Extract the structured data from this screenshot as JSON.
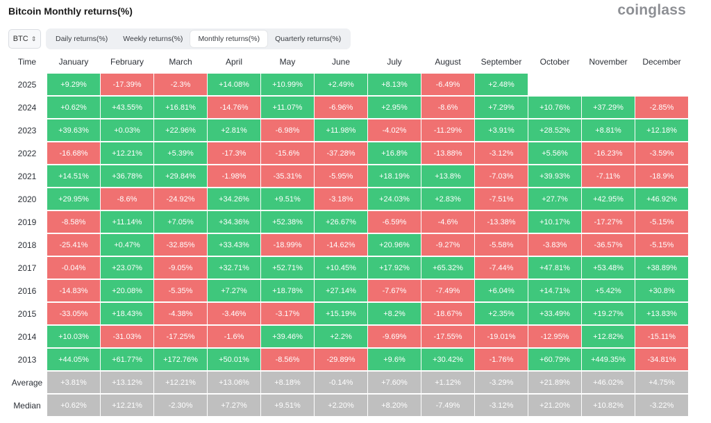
{
  "header": {
    "title": "Bitcoin Monthly returns(%)",
    "logo": "coinglass"
  },
  "controls": {
    "asset": "BTC",
    "tabs": [
      "Daily returns(%)",
      "Weekly returns(%)",
      "Monthly returns(%)",
      "Quarterly returns(%)"
    ],
    "active_tab": "Monthly returns(%)"
  },
  "table": {
    "columns": [
      "Time",
      "January",
      "February",
      "March",
      "April",
      "May",
      "June",
      "July",
      "August",
      "September",
      "October",
      "November",
      "December"
    ],
    "rows": [
      {
        "label": "2025",
        "values": [
          "+9.29%",
          "-17.39%",
          "-2.3%",
          "+14.08%",
          "+10.99%",
          "+2.49%",
          "+8.13%",
          "-6.49%",
          "+2.48%",
          "",
          "",
          ""
        ]
      },
      {
        "label": "2024",
        "values": [
          "+0.62%",
          "+43.55%",
          "+16.81%",
          "-14.76%",
          "+11.07%",
          "-6.96%",
          "+2.95%",
          "-8.6%",
          "+7.29%",
          "+10.76%",
          "+37.29%",
          "-2.85%"
        ]
      },
      {
        "label": "2023",
        "values": [
          "+39.63%",
          "+0.03%",
          "+22.96%",
          "+2.81%",
          "-6.98%",
          "+11.98%",
          "-4.02%",
          "-11.29%",
          "+3.91%",
          "+28.52%",
          "+8.81%",
          "+12.18%"
        ]
      },
      {
        "label": "2022",
        "values": [
          "-16.68%",
          "+12.21%",
          "+5.39%",
          "-17.3%",
          "-15.6%",
          "-37.28%",
          "+16.8%",
          "-13.88%",
          "-3.12%",
          "+5.56%",
          "-16.23%",
          "-3.59%"
        ]
      },
      {
        "label": "2021",
        "values": [
          "+14.51%",
          "+36.78%",
          "+29.84%",
          "-1.98%",
          "-35.31%",
          "-5.95%",
          "+18.19%",
          "+13.8%",
          "-7.03%",
          "+39.93%",
          "-7.11%",
          "-18.9%"
        ]
      },
      {
        "label": "2020",
        "values": [
          "+29.95%",
          "-8.6%",
          "-24.92%",
          "+34.26%",
          "+9.51%",
          "-3.18%",
          "+24.03%",
          "+2.83%",
          "-7.51%",
          "+27.7%",
          "+42.95%",
          "+46.92%"
        ]
      },
      {
        "label": "2019",
        "values": [
          "-8.58%",
          "+11.14%",
          "+7.05%",
          "+34.36%",
          "+52.38%",
          "+26.67%",
          "-6.59%",
          "-4.6%",
          "-13.38%",
          "+10.17%",
          "-17.27%",
          "-5.15%"
        ]
      },
      {
        "label": "2018",
        "values": [
          "-25.41%",
          "+0.47%",
          "-32.85%",
          "+33.43%",
          "-18.99%",
          "-14.62%",
          "+20.96%",
          "-9.27%",
          "-5.58%",
          "-3.83%",
          "-36.57%",
          "-5.15%"
        ]
      },
      {
        "label": "2017",
        "values": [
          "-0.04%",
          "+23.07%",
          "-9.05%",
          "+32.71%",
          "+52.71%",
          "+10.45%",
          "+17.92%",
          "+65.32%",
          "-7.44%",
          "+47.81%",
          "+53.48%",
          "+38.89%"
        ]
      },
      {
        "label": "2016",
        "values": [
          "-14.83%",
          "+20.08%",
          "-5.35%",
          "+7.27%",
          "+18.78%",
          "+27.14%",
          "-7.67%",
          "-7.49%",
          "+6.04%",
          "+14.71%",
          "+5.42%",
          "+30.8%"
        ]
      },
      {
        "label": "2015",
        "values": [
          "-33.05%",
          "+18.43%",
          "-4.38%",
          "-3.46%",
          "-3.17%",
          "+15.19%",
          "+8.2%",
          "-18.67%",
          "+2.35%",
          "+33.49%",
          "+19.27%",
          "+13.83%"
        ]
      },
      {
        "label": "2014",
        "values": [
          "+10.03%",
          "-31.03%",
          "-17.25%",
          "-1.6%",
          "+39.46%",
          "+2.2%",
          "-9.69%",
          "-17.55%",
          "-19.01%",
          "-12.95%",
          "+12.82%",
          "-15.11%"
        ]
      },
      {
        "label": "2013",
        "values": [
          "+44.05%",
          "+61.77%",
          "+172.76%",
          "+50.01%",
          "-8.56%",
          "-29.89%",
          "+9.6%",
          "+30.42%",
          "-1.76%",
          "+60.79%",
          "+449.35%",
          "-34.81%"
        ]
      }
    ],
    "summary": [
      {
        "label": "Average",
        "values": [
          "+3.81%",
          "+13.12%",
          "+12.21%",
          "+13.06%",
          "+8.18%",
          "-0.14%",
          "+7.60%",
          "+1.12%",
          "-3.29%",
          "+21.89%",
          "+46.02%",
          "+4.75%"
        ]
      },
      {
        "label": "Median",
        "values": [
          "+0.62%",
          "+12.21%",
          "-2.30%",
          "+7.27%",
          "+9.51%",
          "+2.20%",
          "+8.20%",
          "-7.49%",
          "-3.12%",
          "+21.20%",
          "+10.82%",
          "-3.22%"
        ]
      }
    ]
  },
  "colors": {
    "positive": "#3fc77c",
    "negative": "#f07171",
    "summary": "#bfbfbf"
  }
}
